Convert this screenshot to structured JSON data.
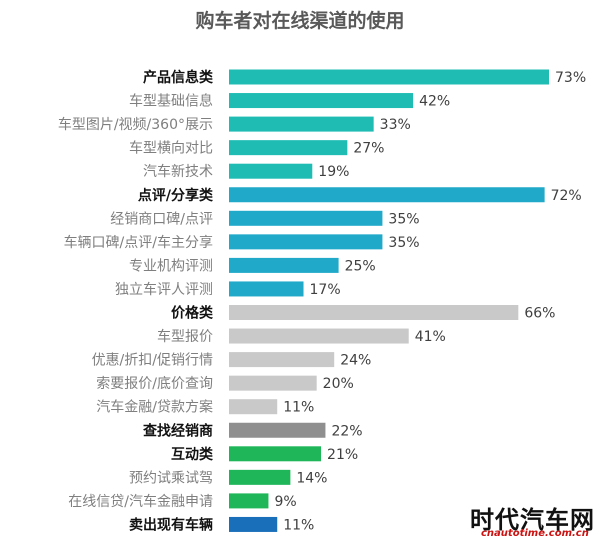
{
  "chart_data": {
    "type": "bar",
    "orientation": "horizontal",
    "title": "购车者对在线渠道的使用",
    "value_suffix": "%",
    "xlim": [
      0,
      73
    ],
    "grid": false,
    "legend": "none",
    "colors": {
      "product": "#1fbcb3",
      "review": "#21a9c9",
      "price": "#c9c9c9",
      "dealer": "#8f8f8f",
      "interact": "#1fb65a",
      "sell": "#1a6fba"
    },
    "items": [
      {
        "label": "产品信息类",
        "value": 73,
        "bold": true,
        "group": "product"
      },
      {
        "label": "车型基础信息",
        "value": 42,
        "bold": false,
        "group": "product"
      },
      {
        "label": "车型图片/视频/360°展示",
        "value": 33,
        "bold": false,
        "group": "product"
      },
      {
        "label": "车型横向对比",
        "value": 27,
        "bold": false,
        "group": "product"
      },
      {
        "label": "汽车新技术",
        "value": 19,
        "bold": false,
        "group": "product"
      },
      {
        "label": "点评/分享类",
        "value": 72,
        "bold": true,
        "group": "review"
      },
      {
        "label": "经销商口碑/点评",
        "value": 35,
        "bold": false,
        "group": "review"
      },
      {
        "label": "车辆口碑/点评/车主分享",
        "value": 35,
        "bold": false,
        "group": "review"
      },
      {
        "label": "专业机构评测",
        "value": 25,
        "bold": false,
        "group": "review"
      },
      {
        "label": "独立车评人评测",
        "value": 17,
        "bold": false,
        "group": "review"
      },
      {
        "label": "价格类",
        "value": 66,
        "bold": true,
        "group": "price"
      },
      {
        "label": "车型报价",
        "value": 41,
        "bold": false,
        "group": "price"
      },
      {
        "label": "优惠/折扣/促销行情",
        "value": 24,
        "bold": false,
        "group": "price"
      },
      {
        "label": "索要报价/底价查询",
        "value": 20,
        "bold": false,
        "group": "price"
      },
      {
        "label": "汽车金融/贷款方案",
        "value": 11,
        "bold": false,
        "group": "price"
      },
      {
        "label": "查找经销商",
        "value": 22,
        "bold": true,
        "group": "dealer"
      },
      {
        "label": "互动类",
        "value": 21,
        "bold": true,
        "group": "interact"
      },
      {
        "label": "预约试乘试驾",
        "value": 14,
        "bold": false,
        "group": "interact"
      },
      {
        "label": "在线信贷/汽车金融申请",
        "value": 9,
        "bold": false,
        "group": "interact"
      },
      {
        "label": "卖出现有车辆",
        "value": 11,
        "bold": true,
        "group": "sell"
      }
    ]
  },
  "watermark": {
    "name": "时代汽车网",
    "url": "cnautotime.com.cn"
  }
}
